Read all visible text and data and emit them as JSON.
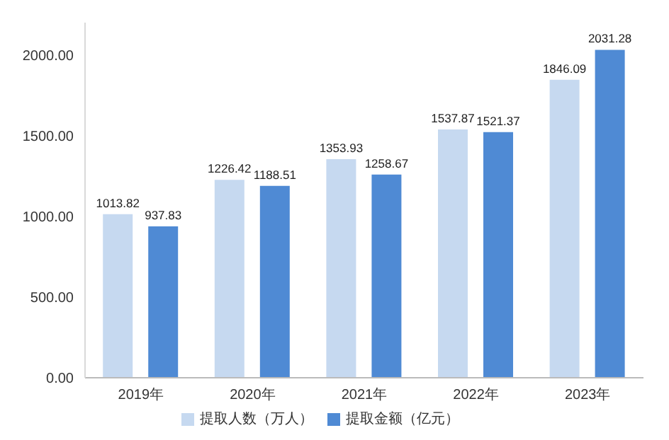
{
  "chart_data": {
    "type": "bar",
    "categories": [
      "2019年",
      "2020年",
      "2021年",
      "2022年",
      "2023年"
    ],
    "series": [
      {
        "name": "提取人数（万人）",
        "color": "#c6d9f0",
        "values": [
          1013.82,
          1226.42,
          1353.93,
          1537.87,
          1846.09
        ]
      },
      {
        "name": "提取金额（亿元）",
        "color": "#4f8ad4",
        "values": [
          937.83,
          1188.51,
          1258.67,
          1521.37,
          2031.28
        ]
      }
    ],
    "ylim": [
      0,
      2200
    ],
    "yticks": [
      {
        "value": 0,
        "label": "0.00"
      },
      {
        "value": 500,
        "label": "500.00"
      },
      {
        "value": 1000,
        "label": "1000.00"
      },
      {
        "value": 1500,
        "label": "1500.00"
      },
      {
        "value": 2000,
        "label": "2000.00"
      }
    ],
    "data_labels": true,
    "legend": "bottom",
    "grid": false
  }
}
